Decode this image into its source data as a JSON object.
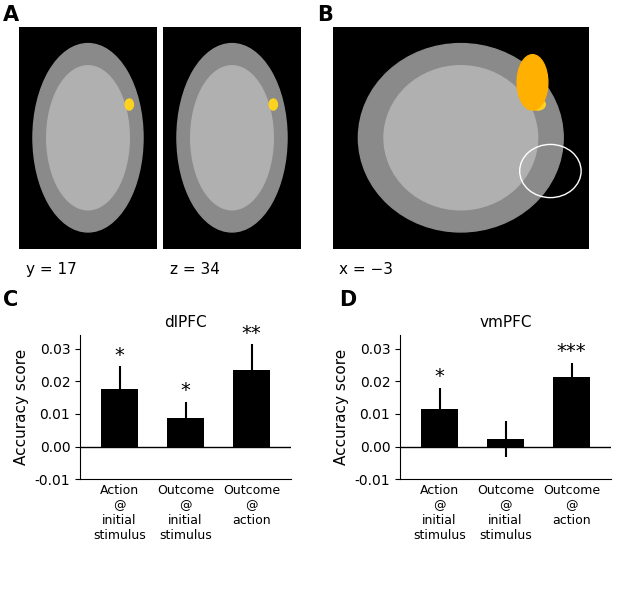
{
  "images": [
    {
      "panel": "A",
      "captions": [
        "y = 17",
        "z = 34"
      ]
    },
    {
      "panel": "B",
      "captions": [
        "x = −3"
      ]
    }
  ],
  "chart_data": [
    {
      "type": "bar",
      "panel": "C",
      "title": "dlPFC",
      "y_label": "Accuracy score",
      "categories": [
        "Action\n@\ninitial\nstimulus",
        "Outcome\n@\ninitial\nstimulus",
        "Outcome\n@\naction"
      ],
      "values": [
        0.0175,
        0.0087,
        0.0233
      ],
      "errors": [
        0.007,
        0.005,
        0.008
      ],
      "significance": [
        "*",
        "*",
        "**"
      ],
      "color": "#000000",
      "ylim": [
        -0.01,
        0.034
      ],
      "yticks": [
        -0.01,
        {
          "value": 0,
          "label": "0.00"
        },
        0.01,
        0.02,
        0.03
      ]
    },
    {
      "type": "bar",
      "panel": "D",
      "title": "vmPFC",
      "y_label": "Accuracy score",
      "categories": [
        "Action\n@\ninitial\nstimulus",
        "Outcome\n@\ninitial\nstimulus",
        "Outcome\n@\naction"
      ],
      "values": [
        0.0115,
        0.0023,
        0.0212
      ],
      "errors": [
        0.0065,
        0.0055,
        0.0045
      ],
      "significance": [
        "*",
        null,
        "***"
      ],
      "color": "#000000",
      "ylim": [
        -0.01,
        0.034
      ],
      "yticks": [
        -0.01,
        {
          "value": 0,
          "label": "0.00"
        },
        0.01,
        0.02,
        0.03
      ]
    }
  ]
}
